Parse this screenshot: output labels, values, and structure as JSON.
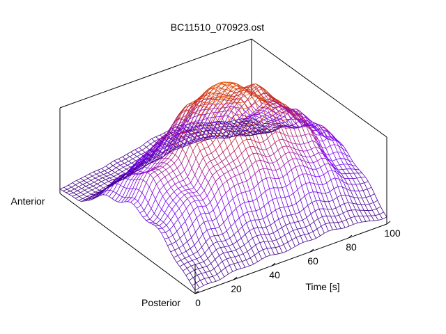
{
  "chart_data": {
    "type": "surface",
    "title": "BC11510_070923.ost",
    "xlabel": "Time [s]",
    "ylabel": "",
    "y_end_labels": {
      "start": "Posterior",
      "end": "Anterior"
    },
    "xlim": [
      0,
      100
    ],
    "x_ticks": [
      "0",
      "20",
      "40",
      "60",
      "80",
      "100"
    ],
    "z_axis": {
      "ticks_shown": false
    },
    "grid": false,
    "colormap": [
      "#000000",
      "#7a00ff",
      "#c8241e",
      "#ff8c00",
      "#ffff00"
    ],
    "surface_description_values": {
      "x": [
        0,
        10,
        20,
        30,
        40,
        50,
        60,
        70,
        80,
        90,
        100
      ],
      "y_positions": [
        "posterior",
        "mid",
        "anterior"
      ],
      "z_relative": [
        [
          0.1,
          0.16,
          0.22,
          0.26,
          0.3,
          0.28,
          0.36,
          0.4,
          0.38,
          0.3,
          0.22
        ],
        [
          0.28,
          0.4,
          0.48,
          0.6,
          0.72,
          0.78,
          0.74,
          0.68,
          0.55,
          0.42,
          0.3
        ],
        [
          0.2,
          0.32,
          0.42,
          0.55,
          0.7,
          0.9,
          1.0,
          0.88,
          0.62,
          0.4,
          0.25
        ]
      ]
    }
  }
}
